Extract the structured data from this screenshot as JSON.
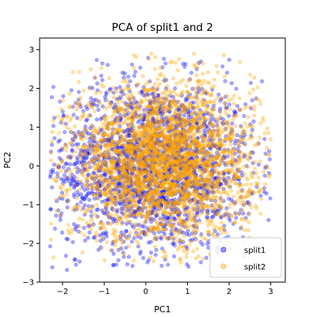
{
  "chart_data": {
    "type": "scatter",
    "title": "PCA of split1 and 2",
    "xlabel": "PC1",
    "ylabel": "PC2",
    "xlim": [
      -2.55,
      3.35
    ],
    "ylim": [
      -3.0,
      3.3
    ],
    "xticks": [
      -2,
      -1,
      0,
      1,
      2,
      3
    ],
    "yticks": [
      -3,
      -2,
      -1,
      0,
      1,
      2,
      3
    ],
    "grid": false,
    "legend_position": "lower-right",
    "series": [
      {
        "name": "split1",
        "color": "#0000ff",
        "alpha": 0.35,
        "distribution": {
          "x_range": [
            -2.3,
            3.0
          ],
          "y_range": [
            -2.7,
            2.8
          ],
          "center": [
            0.2,
            0.0
          ],
          "spread": [
            1.2,
            1.1
          ]
        }
      },
      {
        "name": "split2",
        "color": "#ffa500",
        "alpha": 0.35,
        "distribution": {
          "x_range": [
            -2.3,
            3.0
          ],
          "y_range": [
            -2.5,
            2.9
          ],
          "center": [
            0.4,
            0.1
          ],
          "spread": [
            1.1,
            1.0
          ]
        }
      }
    ]
  }
}
